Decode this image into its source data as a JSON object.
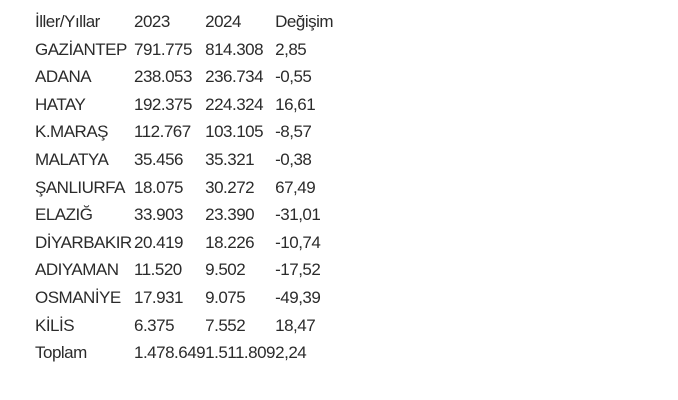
{
  "colors": {
    "background": "#ffffff",
    "text": "#2b2b2b"
  },
  "table": {
    "col_headers": [
      "İller/Yıllar",
      "2023",
      "2024",
      "Değişim"
    ],
    "rows": [
      [
        "GAZİANTEP",
        "791.775",
        "814.308",
        "2,85"
      ],
      [
        "ADANA",
        "238.053",
        "236.734",
        "-0,55"
      ],
      [
        "HATAY",
        "192.375",
        "224.324",
        "16,61"
      ],
      [
        "K.MARAŞ",
        "112.767",
        "103.105",
        "-8,57"
      ],
      [
        "MALATYA",
        "35.456",
        "35.321",
        "-0,38"
      ],
      [
        "ŞANLIURFA",
        "18.075",
        "30.272",
        "67,49"
      ],
      [
        "ELAZIĞ",
        "33.903",
        "23.390",
        "-31,01"
      ],
      [
        "DİYARBAKIR",
        "20.419",
        "18.226",
        "-10,74"
      ],
      [
        "ADIYAMAN",
        "11.520",
        "9.502",
        "-17,52"
      ],
      [
        "OSMANİYE",
        "17.931",
        "9.075",
        "-49,39"
      ],
      [
        "KİLİS",
        "6.375",
        "7.552",
        "18,47"
      ]
    ],
    "total_row": [
      "Toplam",
      "1.478.649",
      "1.511.809",
      "2,24"
    ]
  }
}
